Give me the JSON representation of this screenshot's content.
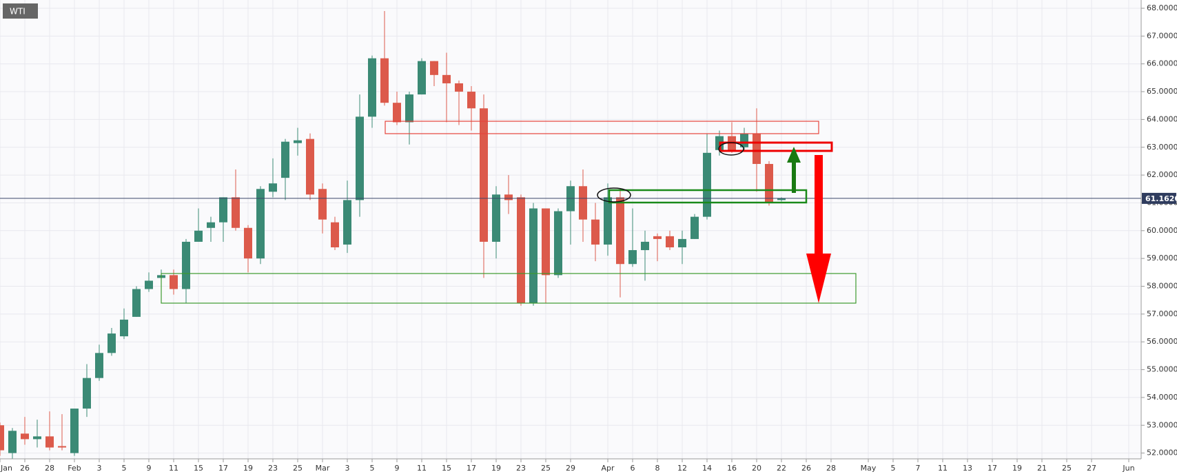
{
  "chart_data": {
    "type": "candlestick",
    "title": "WTI",
    "up_color": "#3b8a75",
    "down_color": "#dc5a4b",
    "grid": true,
    "categories": [
      "Jan",
      null,
      "26",
      null,
      "28",
      null,
      "Feb",
      null,
      "3",
      null,
      "5",
      null,
      "9",
      null,
      "11",
      null,
      "15",
      null,
      "17",
      null,
      "19",
      null,
      "23",
      null,
      "25",
      null,
      "Mar",
      null,
      "3",
      null,
      "5",
      null,
      "9",
      null,
      "11",
      null,
      "15",
      null,
      "17",
      null,
      "19",
      null,
      "23",
      null,
      "25",
      null,
      "29",
      null,
      null,
      "Apr",
      null,
      "6",
      null,
      "8",
      null,
      "12",
      null,
      "14",
      null,
      "16",
      null,
      "20",
      null,
      "22",
      null,
      "26",
      null,
      "28",
      null,
      null,
      "May",
      null,
      "5",
      null,
      "7",
      null,
      "11",
      null,
      "13",
      null,
      "17",
      null,
      "19",
      null,
      "21",
      null,
      "25",
      null,
      "27",
      null,
      null,
      "Jun"
    ],
    "open": [
      53.0,
      52.0,
      52.7,
      52.5,
      52.6,
      52.25,
      52.0,
      53.6,
      54.7,
      55.6,
      56.2,
      56.9,
      57.9,
      58.3,
      58.4,
      57.9,
      59.6,
      60.1,
      60.3,
      61.2,
      60.1,
      59.0,
      61.4,
      61.9,
      63.15,
      63.3,
      61.5,
      60.3,
      59.5,
      61.1,
      64.1,
      66.2,
      64.6,
      63.9,
      64.9,
      66.1,
      65.6,
      65.3,
      65.0,
      64.4,
      59.6,
      61.3,
      61.2,
      57.4,
      60.8,
      58.4,
      60.7,
      61.6,
      60.4,
      59.5,
      61.2,
      58.8,
      59.3,
      59.8,
      59.8,
      59.4,
      59.7,
      60.5,
      62.9,
      63.4,
      63.0,
      63.5,
      62.4,
      61.1,
      null,
      null,
      null,
      null,
      null,
      null,
      null,
      null,
      null,
      null,
      null,
      null,
      null,
      null,
      null,
      null,
      null,
      null,
      null,
      null,
      null,
      null,
      null,
      null,
      null,
      null,
      null,
      null
    ],
    "high": [
      53.1,
      52.9,
      53.3,
      53.2,
      53.5,
      53.4,
      53.6,
      55.2,
      55.9,
      56.5,
      57.2,
      58.0,
      58.5,
      58.6,
      58.6,
      59.7,
      60.8,
      60.5,
      61.2,
      62.2,
      60.2,
      61.6,
      62.6,
      63.3,
      63.7,
      63.5,
      61.7,
      60.5,
      61.8,
      64.9,
      66.3,
      67.9,
      65.0,
      65.0,
      66.2,
      66.1,
      66.4,
      65.4,
      65.2,
      64.9,
      61.6,
      62.0,
      61.3,
      61.0,
      60.8,
      60.8,
      61.8,
      62.2,
      61.0,
      61.7,
      61.5,
      60.8,
      60.0,
      59.9,
      60.0,
      60.0,
      60.6,
      63.5,
      63.6,
      63.9,
      63.7,
      64.4,
      62.5,
      61.2,
      null,
      null,
      null,
      null,
      null,
      null,
      null,
      null,
      null,
      null,
      null,
      null,
      null,
      null,
      null,
      null,
      null,
      null,
      null,
      null,
      null,
      null,
      null,
      null,
      null,
      null,
      null,
      null
    ],
    "low": [
      51.9,
      51.8,
      52.3,
      52.2,
      52.1,
      52.1,
      51.9,
      53.3,
      54.6,
      55.5,
      56.1,
      56.9,
      57.8,
      58.1,
      57.7,
      57.4,
      59.6,
      59.6,
      59.6,
      60.0,
      58.5,
      58.8,
      61.2,
      61.1,
      62.7,
      61.1,
      59.9,
      59.3,
      59.2,
      60.5,
      63.7,
      64.5,
      63.8,
      63.1,
      64.9,
      65.2,
      63.9,
      63.8,
      63.6,
      58.3,
      59.0,
      60.6,
      57.3,
      57.3,
      57.4,
      58.3,
      59.5,
      59.6,
      58.9,
      59.1,
      57.6,
      58.7,
      58.2,
      58.9,
      59.3,
      58.8,
      59.7,
      60.4,
      62.7,
      62.8,
      62.9,
      61.4,
      60.9,
      61.05,
      null,
      null,
      null,
      null,
      null,
      null,
      null,
      null,
      null,
      null,
      null,
      null,
      null,
      null,
      null,
      null,
      null,
      null,
      null,
      null,
      null,
      null,
      null,
      null,
      null,
      null,
      null,
      null
    ],
    "close": [
      52.1,
      52.8,
      52.5,
      52.6,
      52.2,
      52.2,
      53.6,
      54.7,
      55.6,
      56.3,
      56.8,
      57.9,
      58.2,
      58.4,
      57.9,
      59.6,
      60.0,
      60.3,
      61.2,
      60.1,
      59.0,
      61.5,
      61.7,
      63.2,
      63.25,
      61.3,
      60.4,
      59.4,
      61.1,
      64.1,
      66.2,
      64.6,
      63.9,
      64.9,
      66.1,
      65.6,
      65.3,
      65.0,
      64.4,
      59.6,
      61.3,
      61.1,
      57.4,
      60.8,
      58.4,
      60.7,
      61.6,
      60.4,
      59.5,
      61.2,
      58.8,
      59.3,
      59.6,
      59.7,
      59.4,
      59.7,
      60.5,
      62.8,
      63.4,
      62.9,
      63.5,
      62.4,
      61.0,
      61.16,
      null,
      null,
      null,
      null,
      null,
      null,
      null,
      null,
      null,
      null,
      null,
      null,
      null,
      null,
      null,
      null,
      null,
      null,
      null,
      null,
      null,
      null,
      null,
      null,
      null,
      null,
      null,
      null
    ],
    "current_price": {
      "value": 61.162,
      "label": "61.1620"
    },
    "ylim": [
      51.9,
      68.3
    ],
    "yticks": [
      {
        "value": 52,
        "label": "52.0000"
      },
      {
        "value": 53,
        "label": "53.0000"
      },
      {
        "value": 54,
        "label": "54.0000"
      },
      {
        "value": 55,
        "label": "55.0000"
      },
      {
        "value": 56,
        "label": "56.0000"
      },
      {
        "value": 57,
        "label": "57.0000"
      },
      {
        "value": 58,
        "label": "58.0000"
      },
      {
        "value": 59,
        "label": "59.0000"
      },
      {
        "value": 60,
        "label": "60.0000"
      },
      {
        "value": 61,
        "label": "61.0000"
      },
      {
        "value": 62,
        "label": "62.0000"
      },
      {
        "value": 63,
        "label": "63.0000"
      },
      {
        "value": 64,
        "label": "64.0000"
      },
      {
        "value": 65,
        "label": "65.0000"
      },
      {
        "value": 66,
        "label": "66.0000"
      },
      {
        "value": 67,
        "label": "67.0000"
      },
      {
        "value": 68,
        "label": "68.0000"
      }
    ]
  }
}
